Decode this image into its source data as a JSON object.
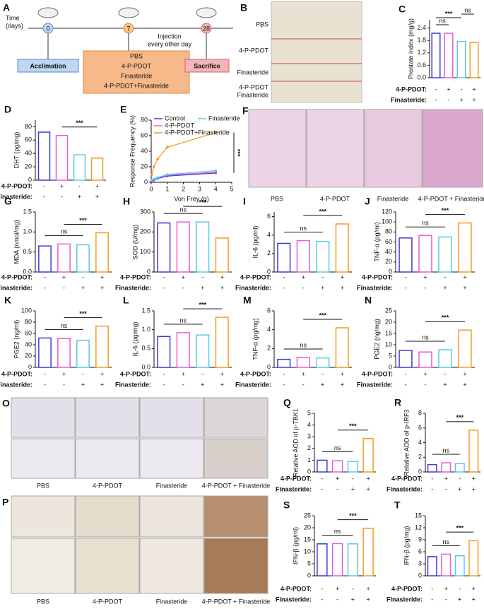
{
  "panels": {
    "A": {
      "letter": "A",
      "time_label": [
        "Time",
        "(days)"
      ],
      "days": [
        "0",
        "7",
        "28"
      ],
      "dots": "......",
      "injection": [
        "Injection",
        "every other day"
      ],
      "acclimation": "Acclimation",
      "groups": [
        "PBS",
        "4-P-PDOT",
        "Finasteride",
        "4-P-PDOT+Finasteride"
      ],
      "sacrifice": "Sacrifice"
    },
    "B": {
      "letter": "B",
      "labels": [
        [
          "PBS"
        ],
        [
          "4-P-PDOT"
        ],
        [
          "Finasteride"
        ],
        [
          "4-P-PDOT",
          "Finasteride"
        ]
      ]
    },
    "F": {
      "letter": "F",
      "labels": [
        "PBS",
        "4-P-PDOT",
        "Finasteride",
        "4-P-PDOT + Finasteride"
      ]
    },
    "O": {
      "letter": "O",
      "labels": [
        "PBS",
        "4-P-PDOT",
        "Finasteride",
        "4-P-PDOT + Finasteride"
      ]
    },
    "P": {
      "letter": "P",
      "labels": [
        "PBS",
        "4-P-PDOT",
        "Finasteride",
        "4-P-PDOT + Finasteride"
      ]
    }
  },
  "chart_data": [
    {
      "panel": "C",
      "type": "bar",
      "ylabel": "Prostate index (mg/g)",
      "values": [
        2.15,
        2.15,
        1.75,
        1.7
      ],
      "colors": [
        "#3a3ad8",
        "#e85bd6",
        "#5bc8e8",
        "#f59a23"
      ],
      "ylim": [
        0,
        2.8
      ],
      "yticks": [
        {
          "value": 0,
          "label": "0.0"
        },
        0.6,
        1.2,
        1.8,
        2.4
      ],
      "annotations": [
        "ns",
        "***",
        "ns"
      ],
      "conditions": [
        {
          "name": "4-P-PDOT:",
          "signs": [
            "-",
            "+",
            "-",
            "+"
          ]
        },
        {
          "name": "Finasteride:",
          "signs": [
            "-",
            "-",
            "+",
            "+"
          ]
        }
      ]
    },
    {
      "panel": "D",
      "type": "bar",
      "ylabel": "DHT (pg/mg)",
      "values": [
        72,
        67,
        38,
        33
      ],
      "colors": [
        "#3a3ad8",
        "#e85bd6",
        "#5bc8e8",
        "#f59a23"
      ],
      "ylim": [
        0,
        90
      ],
      "yticks": [
        0,
        20,
        40,
        60,
        80
      ],
      "annotations": [
        "***"
      ],
      "conditions": [
        {
          "name": "4-P-PDOT:",
          "signs": [
            "-",
            "+",
            "-",
            "+"
          ]
        },
        {
          "name": "Finasteride:",
          "signs": [
            "-",
            "-",
            "+",
            "+"
          ]
        }
      ]
    },
    {
      "panel": "E",
      "type": "line",
      "ylabel": "Response Frequency (%)",
      "xlabel": "Von Frey (g)",
      "x": [
        0.04,
        0.16,
        0.4,
        1,
        4
      ],
      "xlim": [
        0,
        5
      ],
      "xticks": [
        0,
        1,
        2,
        3,
        4,
        5
      ],
      "ylim": [
        0,
        80
      ],
      "yticks": [
        0,
        20,
        40,
        60,
        80
      ],
      "annotations": [
        "***"
      ],
      "series": [
        {
          "name": "Control",
          "color": "#3a3ad8",
          "values": [
            2,
            3,
            5,
            8,
            12
          ]
        },
        {
          "name": "4-P-PDOT",
          "color": "#e85bd6",
          "values": [
            2,
            4,
            6,
            9,
            13
          ]
        },
        {
          "name": "Finasteride",
          "color": "#5bc8e8",
          "values": [
            3,
            4,
            6,
            10,
            15
          ]
        },
        {
          "name": "4-P-PDOT+Finasteride",
          "color": "#f59a23",
          "values": [
            10,
            20,
            30,
            45,
            64
          ]
        }
      ]
    },
    {
      "panel": "G",
      "type": "bar",
      "ylabel": "MDA (nmol/mg)",
      "values": [
        0.65,
        0.7,
        0.68,
        0.98
      ],
      "colors": [
        "#3a3ad8",
        "#e85bd6",
        "#5bc8e8",
        "#f59a23"
      ],
      "ylim": [
        0,
        1.5
      ],
      "yticks": [
        {
          "value": 0,
          "label": "0.0"
        },
        0.5,
        {
          "value": 1,
          "label": "1.0"
        },
        1.5
      ],
      "annotations": [
        "ns",
        "***"
      ],
      "conditions": [
        {
          "name": "4-P-PDOT:",
          "signs": [
            "-",
            "+",
            "-",
            "+"
          ]
        },
        {
          "name": "Finasteride:",
          "signs": [
            "-",
            "-",
            "+",
            "+"
          ]
        }
      ]
    },
    {
      "panel": "H",
      "type": "bar",
      "ylabel": "SOD (U/mg)",
      "values": [
        245,
        250,
        250,
        170
      ],
      "colors": [
        "#3a3ad8",
        "#e85bd6",
        "#5bc8e8",
        "#f59a23"
      ],
      "ylim": [
        0,
        300
      ],
      "yticks": [
        0,
        100,
        200,
        300
      ],
      "annotations": [
        "ns",
        "***"
      ],
      "conditions": [
        {
          "name": "4-P-PDOT:",
          "signs": [
            "-",
            "+",
            "-",
            "+"
          ]
        },
        {
          "name": "Finasteride:",
          "signs": [
            "-",
            "-",
            "+",
            "+"
          ]
        }
      ]
    },
    {
      "panel": "I",
      "type": "bar",
      "ylabel": "IL-6 (pg/ml)",
      "values": [
        3.1,
        3.4,
        3.3,
        5.2
      ],
      "colors": [
        "#3a3ad8",
        "#e85bd6",
        "#5bc8e8",
        "#f59a23"
      ],
      "ylim": [
        0,
        6.5
      ],
      "yticks": [
        0,
        2,
        4,
        6
      ],
      "annotations": [
        "ns",
        "***"
      ],
      "conditions": [
        {
          "name": "4-P-PDOT:",
          "signs": [
            "-",
            "+",
            "-",
            "+"
          ]
        },
        {
          "name": "Finasteride:",
          "signs": [
            "-",
            "-",
            "+",
            "+"
          ]
        }
      ]
    },
    {
      "panel": "J",
      "type": "bar",
      "ylabel": "TNF-α (pg/ml)",
      "values": [
        68,
        73,
        70,
        98
      ],
      "colors": [
        "#3a3ad8",
        "#e85bd6",
        "#5bc8e8",
        "#f59a23"
      ],
      "ylim": [
        0,
        120
      ],
      "yticks": [
        0,
        20,
        40,
        60,
        80,
        100,
        120
      ],
      "annotations": [
        "ns",
        "***"
      ],
      "conditions": [
        {
          "name": "4-P-PDOT:",
          "signs": [
            "-",
            "+",
            "-",
            "+"
          ]
        },
        {
          "name": "Finasteride:",
          "signs": [
            "-",
            "-",
            "+",
            "+"
          ]
        }
      ]
    },
    {
      "panel": "K",
      "type": "bar",
      "ylabel": "PGE2 (ng/ml)",
      "values": [
        52,
        51,
        48,
        73
      ],
      "colors": [
        "#3a3ad8",
        "#e85bd6",
        "#5bc8e8",
        "#f59a23"
      ],
      "ylim": [
        0,
        100
      ],
      "yticks": [
        0,
        20,
        40,
        60,
        80,
        100
      ],
      "annotations": [
        "ns",
        "***"
      ],
      "conditions": [
        {
          "name": "4-P-PDOT:",
          "signs": [
            "-",
            "+",
            "-",
            "+"
          ]
        },
        {
          "name": "Finasteride:",
          "signs": [
            "-",
            "-",
            "+",
            "+"
          ]
        }
      ]
    },
    {
      "panel": "L",
      "type": "bar",
      "ylabel": "IL-6 (pg/mg)",
      "values": [
        0.82,
        0.92,
        0.86,
        1.33
      ],
      "colors": [
        "#3a3ad8",
        "#e85bd6",
        "#5bc8e8",
        "#f59a23"
      ],
      "ylim": [
        0,
        1.5
      ],
      "yticks": [
        {
          "value": 0,
          "label": "0.0"
        },
        0.5,
        {
          "value": 1,
          "label": "1.0"
        },
        1.5
      ],
      "annotations": [
        "ns",
        "***"
      ],
      "conditions": [
        {
          "name": "4-P-PDOT:",
          "signs": [
            "-",
            "+",
            "-",
            "+"
          ]
        },
        {
          "name": "Finasteride:",
          "signs": [
            "-",
            "-",
            "+",
            "+"
          ]
        }
      ]
    },
    {
      "panel": "M",
      "type": "bar",
      "ylabel": "TNF-α (pg/mg)",
      "values": [
        0.85,
        1.05,
        1.0,
        4.2
      ],
      "colors": [
        "#3a3ad8",
        "#e85bd6",
        "#5bc8e8",
        "#f59a23"
      ],
      "ylim": [
        0,
        6
      ],
      "yticks": [
        0,
        2,
        4,
        6
      ],
      "annotations": [
        "ns",
        "***"
      ],
      "conditions": [
        {
          "name": "4-P-PDOT:",
          "signs": [
            "-",
            "+",
            "-",
            "+"
          ]
        },
        {
          "name": "Finasteride:",
          "signs": [
            "-",
            "-",
            "+",
            "+"
          ]
        }
      ]
    },
    {
      "panel": "N",
      "type": "bar",
      "ylabel": "PGE2 (ng/mg)",
      "values": [
        7.5,
        6.8,
        7.8,
        16.5
      ],
      "colors": [
        "#3a3ad8",
        "#e85bd6",
        "#5bc8e8",
        "#f59a23"
      ],
      "ylim": [
        0,
        25
      ],
      "yticks": [
        0,
        5,
        10,
        15,
        20,
        25
      ],
      "annotations": [
        "ns",
        "***"
      ],
      "conditions": [
        {
          "name": "4-P-PDOT:",
          "signs": [
            "-",
            "+",
            "-",
            "+"
          ]
        },
        {
          "name": "Finasteride:",
          "signs": [
            "-",
            "-",
            "+",
            "+"
          ]
        }
      ]
    },
    {
      "panel": "Q",
      "type": "bar",
      "ylabel": "Relative AOD of p-TBK1",
      "values": [
        1.0,
        0.95,
        0.9,
        2.85
      ],
      "colors": [
        "#3a3ad8",
        "#e85bd6",
        "#5bc8e8",
        "#f59a23"
      ],
      "ylim": [
        0,
        5
      ],
      "yticks": [
        0,
        1,
        2,
        3,
        4,
        5
      ],
      "annotations": [
        "ns",
        "***"
      ],
      "conditions": [
        {
          "name": "4-P-PDOT:",
          "signs": [
            "-",
            "+",
            "-",
            "+"
          ]
        },
        {
          "name": "Finasteride:",
          "signs": [
            "-",
            "-",
            "+",
            "+"
          ]
        }
      ]
    },
    {
      "panel": "R",
      "type": "bar",
      "ylabel": "Relative AOD of p-IRF3",
      "values": [
        1.0,
        1.25,
        1.15,
        5.7
      ],
      "colors": [
        "#3a3ad8",
        "#e85bd6",
        "#5bc8e8",
        "#f59a23"
      ],
      "ylim": [
        0,
        8
      ],
      "yticks": [
        0,
        2,
        4,
        6,
        8
      ],
      "annotations": [
        "ns",
        "***"
      ],
      "conditions": [
        {
          "name": "4-P-PDOT:",
          "signs": [
            "-",
            "+",
            "-",
            "+"
          ]
        },
        {
          "name": "Finasteride:",
          "signs": [
            "-",
            "-",
            "+",
            "+"
          ]
        }
      ]
    },
    {
      "panel": "S",
      "type": "bar",
      "ylabel": "IFN-β (pg/ml)",
      "values": [
        13.3,
        13.4,
        13.3,
        19.8
      ],
      "colors": [
        "#3a3ad8",
        "#e85bd6",
        "#5bc8e8",
        "#f59a23"
      ],
      "ylim": [
        0,
        25
      ],
      "yticks": [
        0,
        5,
        10,
        15,
        20,
        25
      ],
      "annotations": [
        "ns",
        "***"
      ],
      "conditions": [
        {
          "name": "4-P-PDOT:",
          "signs": [
            "-",
            "+",
            "-",
            "+"
          ]
        },
        {
          "name": "Finasteride:",
          "signs": [
            "-",
            "-",
            "+",
            "+"
          ]
        }
      ]
    },
    {
      "panel": "T",
      "type": "bar",
      "ylabel": "IFN-β (pg/mg)",
      "values": [
        4.8,
        5.4,
        5.0,
        8.8
      ],
      "colors": [
        "#3a3ad8",
        "#e85bd6",
        "#5bc8e8",
        "#f59a23"
      ],
      "ylim": [
        0,
        15
      ],
      "yticks": [
        0,
        3,
        6,
        9,
        12,
        15
      ],
      "annotations": [
        "ns",
        "***"
      ],
      "conditions": [
        {
          "name": "4-P-PDOT:",
          "signs": [
            "-",
            "+",
            "-",
            "+"
          ]
        },
        {
          "name": "Finasteride:",
          "signs": [
            "-",
            "-",
            "+",
            "+"
          ]
        }
      ]
    }
  ]
}
